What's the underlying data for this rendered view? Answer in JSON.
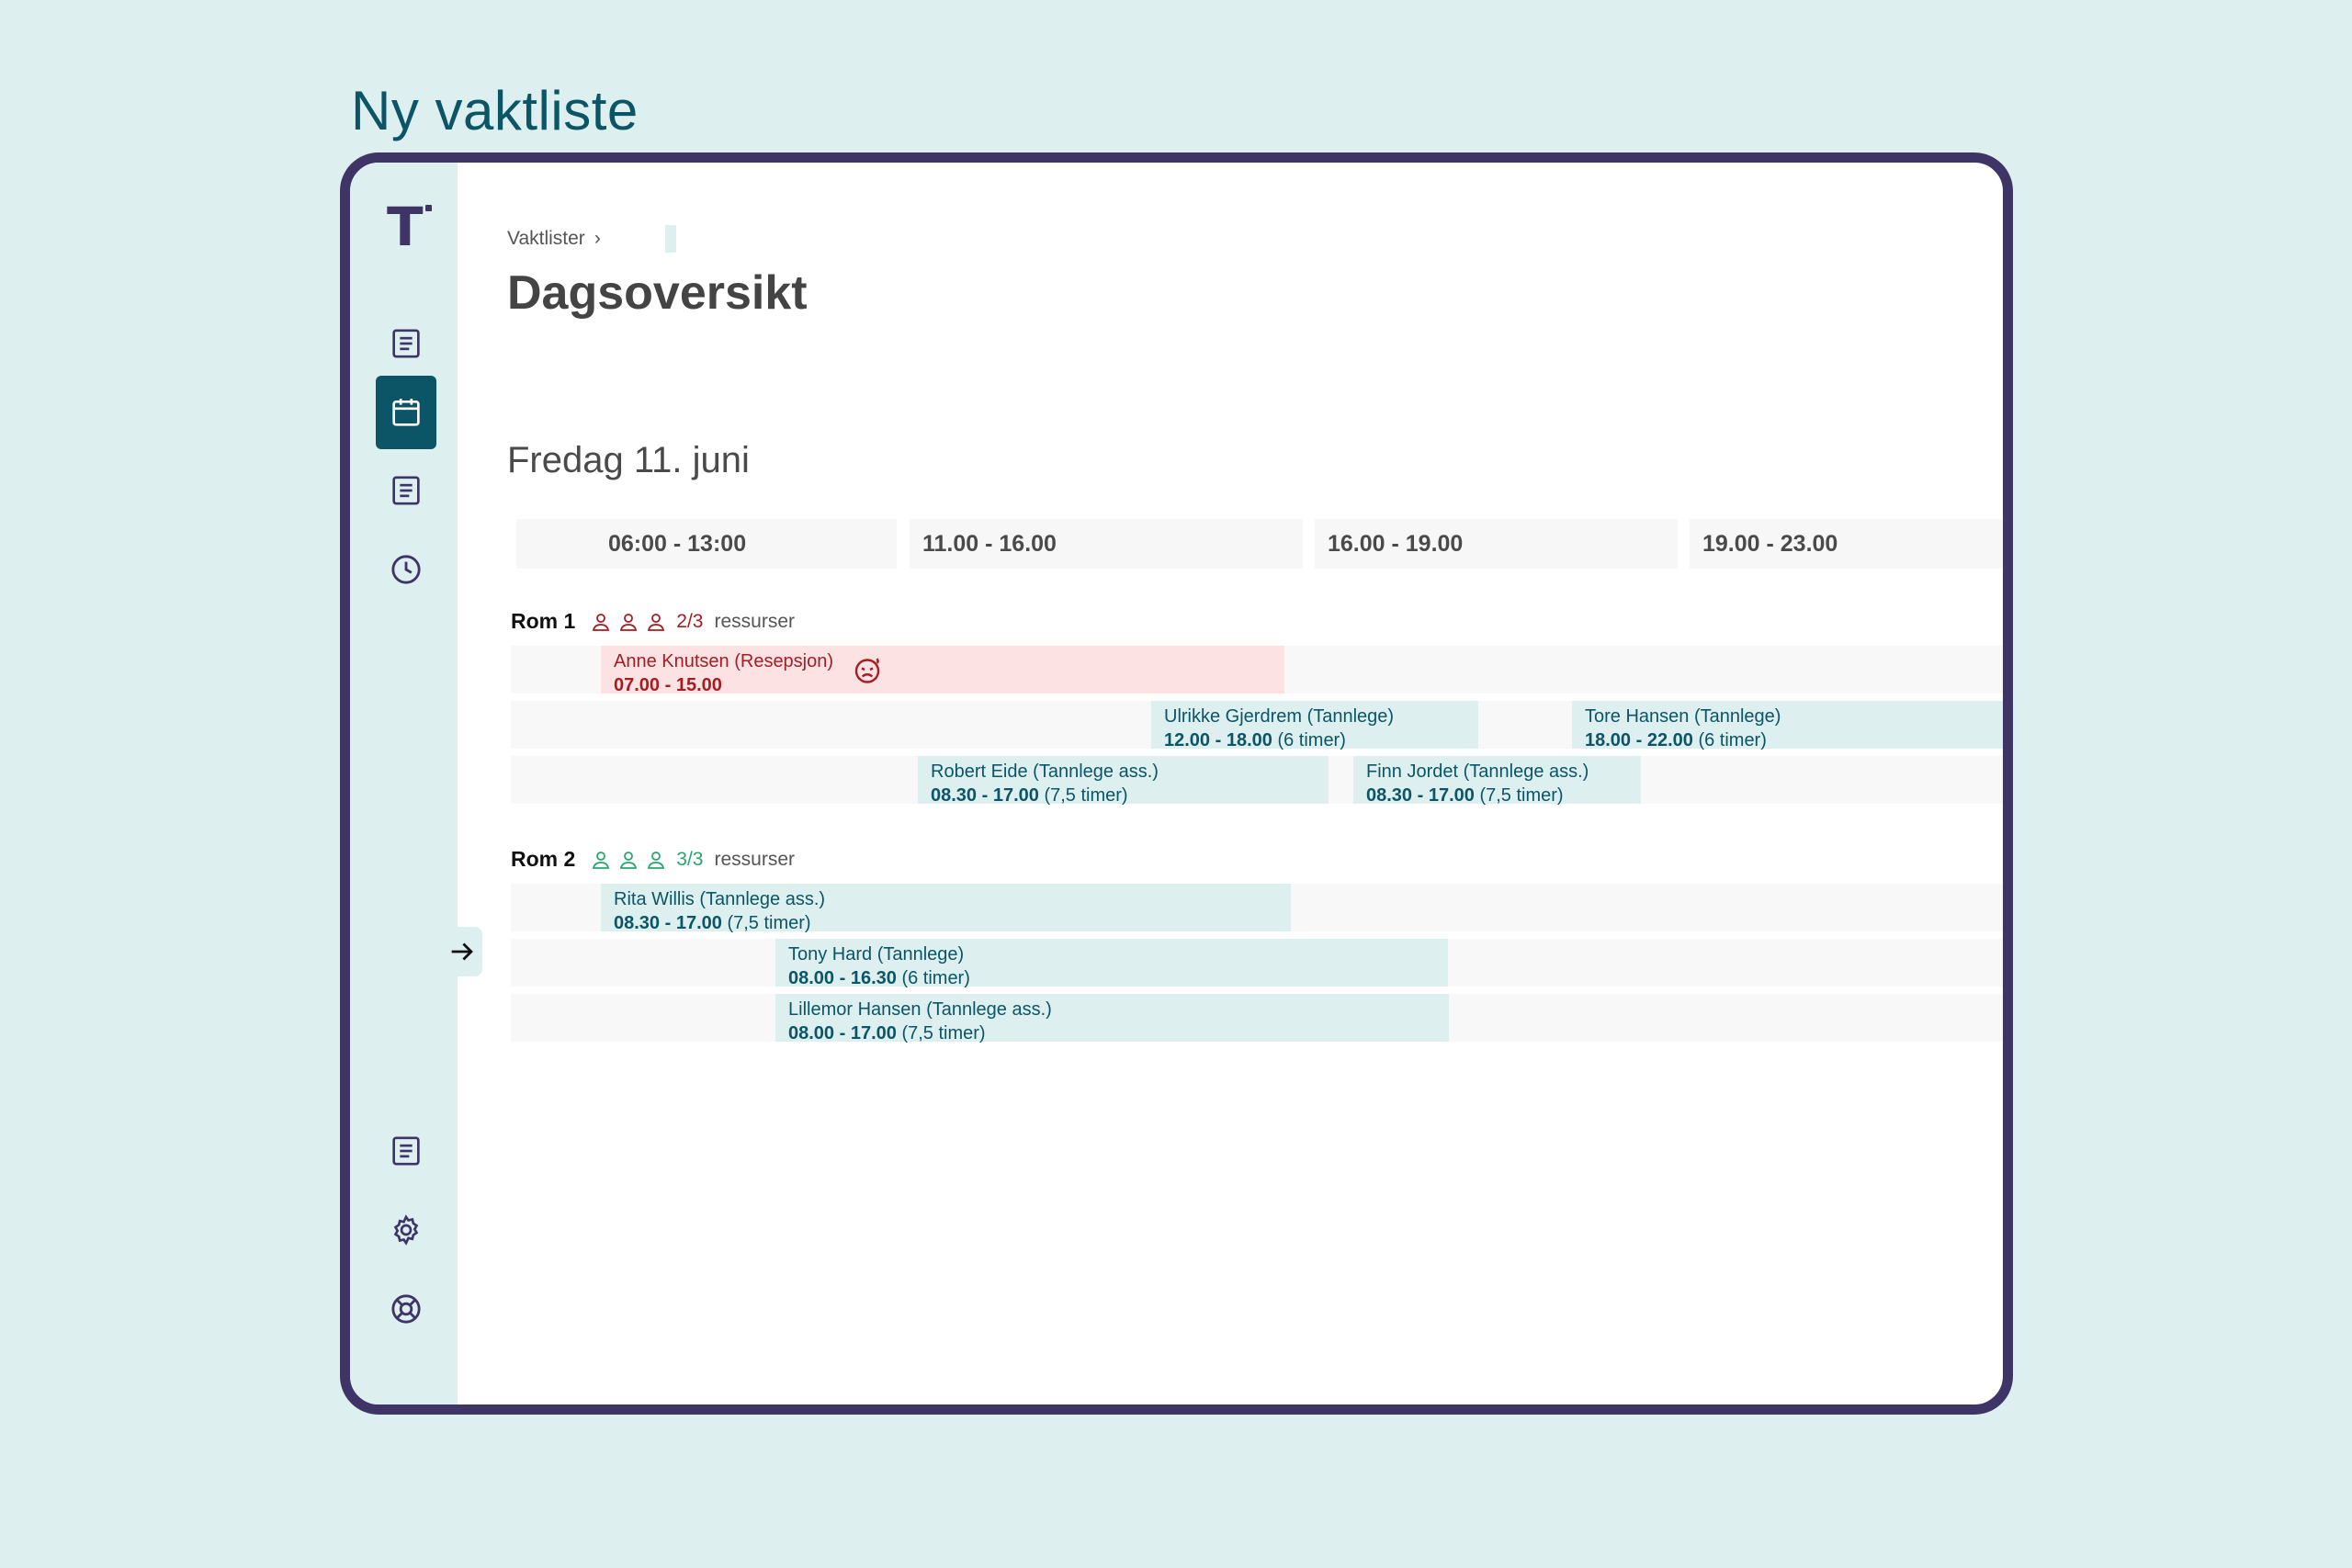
{
  "page_heading": "Ny vaktliste",
  "colors": {
    "accent": "#0b5566",
    "frame": "#3e3466",
    "sidebar_bg": "#ddefef",
    "shift_bg": "#ddefef",
    "absent_bg": "#fde2e4",
    "absent_text": "#a51c22",
    "ok_green": "#2aa56b"
  },
  "sidebar": {
    "logo": "T",
    "items": [
      {
        "icon": "document-icon"
      },
      {
        "icon": "calendar-icon",
        "active": true
      },
      {
        "icon": "document-icon"
      },
      {
        "icon": "clock-icon"
      },
      {
        "icon": "document-icon"
      },
      {
        "icon": "gear-icon"
      },
      {
        "icon": "lifebuoy-icon"
      }
    ]
  },
  "breadcrumb": {
    "parent": "Vaktlister",
    "separator": "›"
  },
  "title": "Dagsoversikt",
  "date": "Fredag 11. juni",
  "time_slots": [
    "06:00 - 13:00",
    "11.00 - 16.00",
    "16.00 - 19.00",
    "19.00 - 23.00"
  ],
  "rooms": [
    {
      "name": "Rom 1",
      "count": "2/3",
      "resources_label": "ressurser",
      "status": "understaffed",
      "shifts": [
        {
          "name": "Anne Knutsen (Resepsjon)",
          "time": "07.00 - 15.00",
          "hours": "",
          "absent": true
        },
        {
          "name": "Ulrikke Gjerdrem  (Tannlege)",
          "time": "12.00 - 18.00",
          "hours": "(6 timer)"
        },
        {
          "name": "Tore Hansen  (Tannlege)",
          "time": "18.00 - 22.00",
          "hours": "(6 timer)"
        },
        {
          "name": "Robert Eide  (Tannlege ass.)",
          "time": "08.30 - 17.00",
          "hours": "(7,5 timer)"
        },
        {
          "name": "Finn Jordet  (Tannlege ass.)",
          "time": "08.30 - 17.00",
          "hours": "(7,5 timer)"
        }
      ]
    },
    {
      "name": "Rom 2",
      "count": "3/3",
      "resources_label": "ressurser",
      "status": "full",
      "shifts": [
        {
          "name": "Rita Willis  (Tannlege ass.)",
          "time": "08.30 - 17.00",
          "hours": "(7,5 timer)"
        },
        {
          "name": "Tony Hard  (Tannlege)",
          "time": "08.00 - 16.30",
          "hours": "(6 timer)"
        },
        {
          "name": "Lillemor Hansen  (Tannlege ass.)",
          "time": "08.00 - 17.00",
          "hours": "(7,5 timer)"
        }
      ]
    }
  ]
}
